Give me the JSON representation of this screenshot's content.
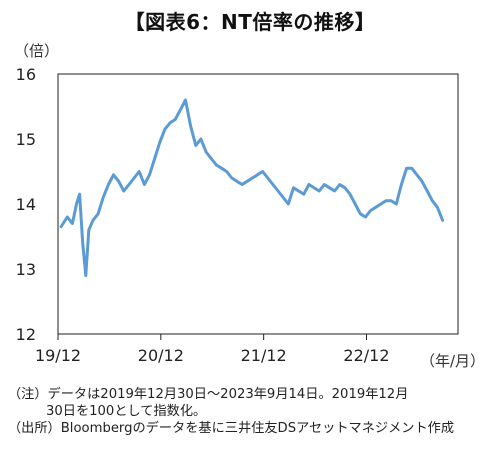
{
  "title": "【図表6：NT倍率の推移】",
  "y_unit": "（倍）",
  "x_unit": "（年/月）",
  "notes": {
    "line1": "（注）データは2019年12月30日～2023年9月14日。2019年12月",
    "line2": "30日を100として指数化。",
    "line3": "（出所）Bloombergのデータを基に三井住友DSアセットマネジメント作成"
  },
  "chart_data": {
    "type": "line",
    "title": "【図表6：NT倍率の推移】",
    "xlabel": "（年/月）",
    "ylabel": "（倍）",
    "ylim": [
      12,
      16
    ],
    "yticks": [
      "12",
      "13",
      "14",
      "15",
      "16"
    ],
    "xticks": [
      "19/12",
      "20/12",
      "21/12",
      "22/12"
    ],
    "grid": false,
    "line_color": "#5B9BD5",
    "series": [
      {
        "x": [
          2019.99,
          2020.05,
          2020.1,
          2020.14,
          2020.17,
          2020.2,
          2020.23,
          2020.26,
          2020.3,
          2020.35,
          2020.4,
          2020.45,
          2020.5,
          2020.55,
          2020.6,
          2020.65,
          2020.7,
          2020.75,
          2020.8,
          2020.85,
          2020.9,
          2020.95,
          2021.0,
          2021.05,
          2021.1,
          2021.15,
          2021.2,
          2021.25,
          2021.3,
          2021.35,
          2021.4,
          2021.45,
          2021.5,
          2021.55,
          2021.6,
          2021.65,
          2021.7,
          2021.75,
          2021.8,
          2021.85,
          2021.9,
          2021.95,
          2022.0,
          2022.05,
          2022.1,
          2022.15,
          2022.2,
          2022.25,
          2022.3,
          2022.35,
          2022.4,
          2022.45,
          2022.5,
          2022.55,
          2022.6,
          2022.65,
          2022.7,
          2022.75,
          2022.8,
          2022.85,
          2022.9,
          2022.95,
          2023.0,
          2023.05,
          2023.1,
          2023.15,
          2023.2,
          2023.25,
          2023.3,
          2023.35,
          2023.4,
          2023.45,
          2023.5,
          2023.55,
          2023.6,
          2023.65,
          2023.7
        ],
        "values": [
          13.65,
          13.8,
          13.7,
          14.0,
          14.15,
          13.4,
          12.9,
          13.6,
          13.75,
          13.85,
          14.1,
          14.3,
          14.45,
          14.35,
          14.2,
          14.3,
          14.4,
          14.5,
          14.3,
          14.45,
          14.7,
          14.95,
          15.15,
          15.25,
          15.3,
          15.45,
          15.6,
          15.2,
          14.9,
          15.0,
          14.8,
          14.7,
          14.6,
          14.55,
          14.5,
          14.4,
          14.35,
          14.3,
          14.35,
          14.4,
          14.45,
          14.5,
          14.4,
          14.3,
          14.2,
          14.1,
          14.0,
          14.25,
          14.2,
          14.15,
          14.3,
          14.25,
          14.2,
          14.3,
          14.25,
          14.2,
          14.3,
          14.25,
          14.15,
          14.0,
          13.85,
          13.8,
          13.9,
          13.95,
          14.0,
          14.05,
          14.05,
          14.0,
          14.3,
          14.55,
          14.55,
          14.45,
          14.35,
          14.2,
          14.05,
          13.95,
          13.75
        ]
      }
    ]
  }
}
